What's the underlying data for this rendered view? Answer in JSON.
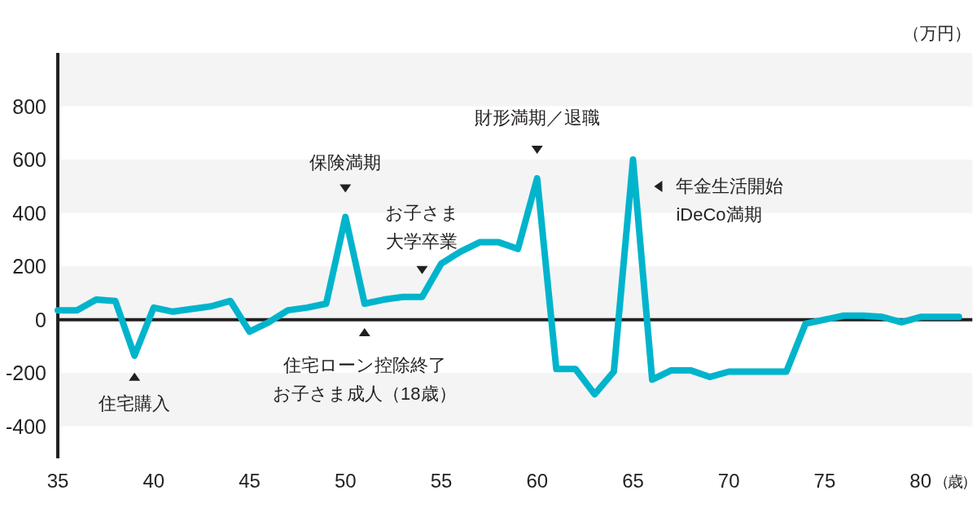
{
  "chart_data": {
    "type": "line",
    "xlabel": "（歳）",
    "ylabel": "（万円）",
    "x": [
      35,
      36,
      37,
      38,
      39,
      40,
      41,
      42,
      43,
      44,
      45,
      46,
      47,
      48,
      49,
      50,
      51,
      52,
      53,
      54,
      55,
      56,
      57,
      58,
      59,
      60,
      61,
      62,
      63,
      64,
      65,
      66,
      67,
      68,
      69,
      70,
      71,
      72,
      73,
      74,
      75,
      76,
      77,
      78,
      79,
      80,
      81,
      82
    ],
    "series": [
      {
        "color": "#00b4cc",
        "values": [
          35,
          35,
          75,
          70,
          -135,
          45,
          30,
          40,
          50,
          70,
          -45,
          -10,
          35,
          45,
          60,
          385,
          60,
          75,
          85,
          85,
          210,
          255,
          290,
          290,
          265,
          530,
          -185,
          -185,
          -280,
          -195,
          600,
          -225,
          -190,
          -190,
          -215,
          -195,
          -195,
          -195,
          -195,
          -15,
          0,
          15,
          15,
          10,
          -10,
          10,
          10,
          10
        ]
      }
    ],
    "xlim": [
      35,
      82.7
    ],
    "xticks": [
      35,
      40,
      45,
      50,
      55,
      60,
      65,
      70,
      75,
      80
    ],
    "ylim": [
      -520,
      1000
    ],
    "yticks": [
      -400,
      -200,
      0,
      200,
      400,
      600,
      800
    ],
    "bands": [
      {
        "axis": "y",
        "from": 800,
        "to": 1000,
        "color": "#f4f4f4"
      },
      {
        "axis": "y",
        "from": 400,
        "to": 600,
        "color": "#f4f4f4"
      },
      {
        "axis": "y",
        "from": 0,
        "to": 200,
        "color": "#f4f4f4"
      },
      {
        "axis": "y",
        "from": -400,
        "to": -200,
        "color": "#f4f4f4"
      }
    ],
    "ref_lines": [
      {
        "axis": "y",
        "value": 0,
        "color": "#231f20"
      }
    ],
    "annotations": [
      {
        "text": "住宅購入",
        "x": 39,
        "y": -135
      },
      {
        "text": "保険満期",
        "x": 50,
        "y": 385
      },
      {
        "text": "住宅ローン控除終了お子さま成人（18歳）",
        "x": 51,
        "y": 60
      },
      {
        "text": "お子さま大学卒業",
        "x": 54,
        "y": 85
      },
      {
        "text": "財形満期／退職",
        "x": 60,
        "y": 530
      },
      {
        "text": "年金生活開始iDeCo満期",
        "x": 65,
        "y": 600
      }
    ]
  }
}
